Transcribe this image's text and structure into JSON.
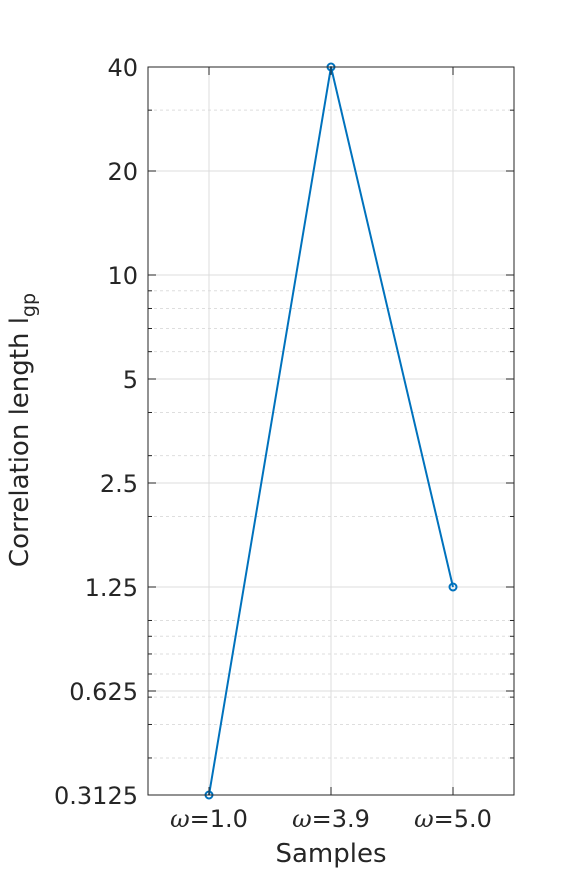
{
  "chart_data": {
    "type": "line",
    "title": "",
    "xlabel": "Samples",
    "ylabel": "Correlation length l",
    "ylabel_subscript": "gp",
    "y_scale": "log2",
    "ylim": [
      0.3125,
      40
    ],
    "grid": true,
    "minor_grid": true,
    "categories": [
      "ω=1.0",
      "ω=3.9",
      "ω=5.0"
    ],
    "x_tick_labels": [
      {
        "prefix": "ω",
        "text": "=1.0"
      },
      {
        "prefix": "ω",
        "text": "=3.9"
      },
      {
        "prefix": "ω",
        "text": "=5.0"
      }
    ],
    "y_ticks": [
      0.3125,
      0.625,
      1.25,
      2.5,
      5,
      10,
      20,
      40
    ],
    "y_tick_labels": [
      "0.3125",
      "0.625",
      "1.25",
      "2.5",
      "5",
      "10",
      "20",
      "40"
    ],
    "series": [
      {
        "color": "#0072bd",
        "marker": "circle",
        "values": [
          0.3125,
          40,
          1.25
        ]
      }
    ]
  }
}
